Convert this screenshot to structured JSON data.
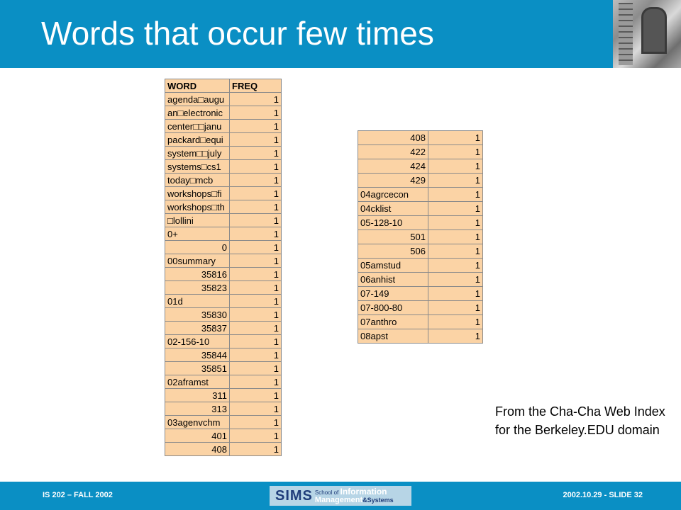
{
  "slide": {
    "title": "Words that occur few times"
  },
  "table_left": {
    "headers": [
      "WORD",
      "FREQ"
    ],
    "rows": [
      [
        "agenda□augu",
        "1"
      ],
      [
        "an□electronic",
        "1"
      ],
      [
        "center□□janu",
        "1"
      ],
      [
        "packard□equi",
        "1"
      ],
      [
        "system□□july",
        "1"
      ],
      [
        "systems□cs1",
        "1"
      ],
      [
        "today□mcb",
        "1"
      ],
      [
        "workshops□fi",
        "1"
      ],
      [
        "workshops□th",
        "1"
      ],
      [
        "□lollini",
        "1"
      ],
      [
        "0+",
        "1"
      ],
      [
        "0",
        "1"
      ],
      [
        "00summary",
        "1"
      ],
      [
        "35816",
        "1"
      ],
      [
        "35823",
        "1"
      ],
      [
        "01d",
        "1"
      ],
      [
        "35830",
        "1"
      ],
      [
        "35837",
        "1"
      ],
      [
        "02-156-10",
        "1"
      ],
      [
        "35844",
        "1"
      ],
      [
        "35851",
        "1"
      ],
      [
        "02aframst",
        "1"
      ],
      [
        "311",
        "1"
      ],
      [
        "313",
        "1"
      ],
      [
        "03agenvchm",
        "1"
      ],
      [
        "401",
        "1"
      ],
      [
        "408",
        "1"
      ]
    ],
    "right_aligned_rows": [
      11,
      13,
      14,
      16,
      17,
      19,
      20,
      22,
      23,
      25,
      26
    ]
  },
  "table_right": {
    "rows": [
      [
        "408",
        "1"
      ],
      [
        "422",
        "1"
      ],
      [
        "424",
        "1"
      ],
      [
        "429",
        "1"
      ],
      [
        "04agrcecon",
        "1"
      ],
      [
        "04cklist",
        "1"
      ],
      [
        "05-128-10",
        "1"
      ],
      [
        "501",
        "1"
      ],
      [
        "506",
        "1"
      ],
      [
        "05amstud",
        "1"
      ],
      [
        "06anhist",
        "1"
      ],
      [
        "07-149",
        "1"
      ],
      [
        "07-800-80",
        "1"
      ],
      [
        "07anthro",
        "1"
      ],
      [
        "08apst",
        "1"
      ]
    ],
    "right_aligned_rows": [
      0,
      1,
      2,
      3,
      7,
      8
    ]
  },
  "source_note": "From  the Cha-Cha Web Index for the Berkeley.EDU domain",
  "footer": {
    "left": "IS 202 – FALL 2002",
    "right": "2002.10.29 - SLIDE 32",
    "logo": {
      "sims": "SIMS",
      "school_of": "School of",
      "information": "Information",
      "management": "Management",
      "systems": "&Systems"
    }
  },
  "colors": {
    "header_bar": "#0a8fc4",
    "table_fill": "#fbd3a5",
    "text": "#000000"
  }
}
